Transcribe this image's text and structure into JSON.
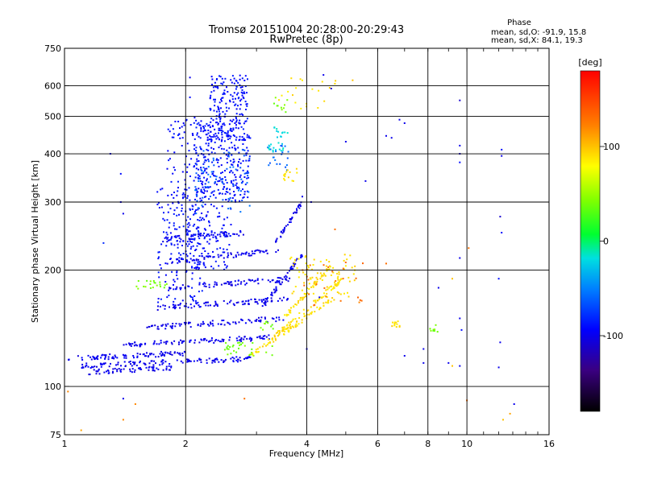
{
  "chart_data": {
    "type": "scatter",
    "title": "Tromsø 20151004 20:28:00-20:29:43",
    "subtitle": "RwPretec (8p)",
    "xlabel": "Frequency [MHz]",
    "ylabel": "Stationary phase Virtual Height [km]",
    "x_scale": "log",
    "y_scale": "log",
    "xlim": [
      1,
      16
    ],
    "ylim": [
      75,
      750
    ],
    "x_ticks": [
      1,
      2,
      4,
      6,
      8,
      10,
      16
    ],
    "x_tick_labels": [
      "1",
      "2",
      "4",
      "6",
      "8",
      "10",
      "16"
    ],
    "y_ticks": [
      75,
      100,
      200,
      300,
      400,
      500,
      600,
      750
    ],
    "y_tick_labels": [
      "75",
      "100",
      "200",
      "300",
      "400",
      "500",
      "600",
      "750"
    ],
    "grid": true,
    "stats": {
      "heading": "Phase",
      "line_o": "mean, sd,O: -91.9, 15.8",
      "line_x": "mean, sd,X:  84.1, 19.3"
    },
    "colorbar": {
      "label": "[deg]",
      "range": [
        -180,
        180
      ],
      "ticks": [
        100,
        0,
        -100
      ],
      "tick_labels": [
        "100",
        "0",
        "-100"
      ]
    },
    "series": [
      {
        "phase": -100,
        "traces": [
          {
            "f0": 1.02,
            "f1": 2.0,
            "h0": 118,
            "h1": 122,
            "n": 90
          },
          {
            "f0": 1.1,
            "f1": 2.9,
            "h0": 113,
            "h1": 118,
            "n": 120
          },
          {
            "f0": 1.15,
            "f1": 1.9,
            "h0": 109,
            "h1": 112,
            "n": 60
          },
          {
            "f0": 1.4,
            "f1": 3.3,
            "h0": 128,
            "h1": 134,
            "n": 100
          },
          {
            "f0": 1.6,
            "f1": 3.5,
            "h0": 142,
            "h1": 150,
            "n": 90
          },
          {
            "f0": 1.7,
            "f1": 3.6,
            "h0": 160,
            "h1": 168,
            "n": 90
          },
          {
            "f0": 1.8,
            "f1": 3.7,
            "h0": 180,
            "h1": 190,
            "n": 80
          },
          {
            "f0": 1.8,
            "f1": 3.4,
            "h0": 210,
            "h1": 225,
            "n": 70
          },
          {
            "f0": 1.75,
            "f1": 2.8,
            "h0": 240,
            "h1": 250,
            "n": 60
          },
          {
            "f0": 3.1,
            "f1": 3.9,
            "h0": 160,
            "h1": 220,
            "n": 50
          },
          {
            "f0": 3.3,
            "f1": 3.9,
            "h0": 230,
            "h1": 300,
            "n": 40
          }
        ]
      },
      {
        "phase": -90,
        "clusters": [
          {
            "fmin": 1.8,
            "fmax": 2.3,
            "hmin": 200,
            "hmax": 500,
            "n": 180
          },
          {
            "fmin": 2.1,
            "fmax": 2.9,
            "hmin": 300,
            "hmax": 480,
            "n": 260
          },
          {
            "fmin": 2.3,
            "fmax": 2.85,
            "hmin": 430,
            "hmax": 640,
            "n": 200
          },
          {
            "fmin": 1.7,
            "fmax": 2.2,
            "hmin": 160,
            "hmax": 330,
            "n": 120
          },
          {
            "fmin": 2.0,
            "fmax": 2.6,
            "hmin": 200,
            "hmax": 300,
            "n": 100
          }
        ]
      },
      {
        "phase": -60,
        "clusters": [
          {
            "fmin": 2.1,
            "fmax": 2.9,
            "hmin": 280,
            "hmax": 420,
            "n": 70
          },
          {
            "fmin": 3.2,
            "fmax": 3.6,
            "hmin": 360,
            "hmax": 420,
            "n": 20
          }
        ]
      },
      {
        "phase": -20,
        "clusters": [
          {
            "fmin": 3.2,
            "fmax": 3.5,
            "hmin": 400,
            "hmax": 430,
            "n": 15
          },
          {
            "fmin": 3.3,
            "fmax": 3.6,
            "hmin": 440,
            "hmax": 470,
            "n": 12
          }
        ]
      },
      {
        "phase": 40,
        "clusters": [
          {
            "fmin": 2.5,
            "fmax": 3.3,
            "hmin": 120,
            "hmax": 130,
            "n": 30
          },
          {
            "fmin": 1.5,
            "fmax": 1.8,
            "hmin": 178,
            "hmax": 188,
            "n": 20
          },
          {
            "fmin": 3.0,
            "fmax": 3.3,
            "hmin": 140,
            "hmax": 150,
            "n": 10
          },
          {
            "fmin": 8.1,
            "fmax": 8.6,
            "hmin": 138,
            "hmax": 145,
            "n": 8
          },
          {
            "fmin": 3.3,
            "fmax": 3.6,
            "hmin": 510,
            "hmax": 560,
            "n": 10
          }
        ]
      },
      {
        "phase": 90,
        "traces": [
          {
            "f0": 2.9,
            "f1": 4.7,
            "h0": 120,
            "h1": 170,
            "n": 70
          },
          {
            "f0": 3.2,
            "f1": 4.9,
            "h0": 130,
            "h1": 190,
            "n": 70
          },
          {
            "f0": 3.5,
            "f1": 4.6,
            "h0": 150,
            "h1": 205,
            "n": 50
          }
        ],
        "clusters": [
          {
            "fmin": 3.6,
            "fmax": 5.3,
            "hmin": 170,
            "hmax": 220,
            "n": 80
          },
          {
            "fmin": 3.5,
            "fmax": 3.8,
            "hmin": 340,
            "hmax": 380,
            "n": 15
          },
          {
            "fmin": 6.5,
            "fmax": 7.0,
            "hmin": 142,
            "hmax": 148,
            "n": 12
          },
          {
            "fmin": 3.4,
            "fmax": 4.8,
            "hmin": 520,
            "hmax": 640,
            "n": 20
          }
        ]
      },
      {
        "phase": 130,
        "clusters": [
          {
            "fmin": 3.9,
            "fmax": 5.6,
            "hmin": 160,
            "hmax": 210,
            "n": 25
          }
        ]
      }
    ],
    "sparse_points": [
      {
        "x": 1.38,
        "y": 300,
        "phase": -100
      },
      {
        "x": 1.38,
        "y": 355,
        "phase": -90
      },
      {
        "x": 1.4,
        "y": 280,
        "phase": -100
      },
      {
        "x": 1.25,
        "y": 235,
        "phase": -80
      },
      {
        "x": 2.05,
        "y": 630,
        "phase": -100
      },
      {
        "x": 2.05,
        "y": 560,
        "phase": -90
      },
      {
        "x": 5.0,
        "y": 430,
        "phase": -100
      },
      {
        "x": 6.5,
        "y": 440,
        "phase": -100
      },
      {
        "x": 6.8,
        "y": 490,
        "phase": -100
      },
      {
        "x": 5.6,
        "y": 340,
        "phase": -100
      },
      {
        "x": 9.6,
        "y": 550,
        "phase": -110
      },
      {
        "x": 9.6,
        "y": 420,
        "phase": -100
      },
      {
        "x": 9.6,
        "y": 400,
        "phase": -110
      },
      {
        "x": 9.6,
        "y": 380,
        "phase": -90
      },
      {
        "x": 12.2,
        "y": 410,
        "phase": -90
      },
      {
        "x": 12.2,
        "y": 395,
        "phase": -100
      },
      {
        "x": 12.1,
        "y": 275,
        "phase": -110
      },
      {
        "x": 12.2,
        "y": 250,
        "phase": -90
      },
      {
        "x": 9.6,
        "y": 215,
        "phase": -100
      },
      {
        "x": 12.0,
        "y": 190,
        "phase": -90
      },
      {
        "x": 12.1,
        "y": 130,
        "phase": -100
      },
      {
        "x": 12.0,
        "y": 112,
        "phase": -100
      },
      {
        "x": 9.6,
        "y": 113,
        "phase": -100
      },
      {
        "x": 9.6,
        "y": 150,
        "phase": -100
      },
      {
        "x": 9.7,
        "y": 140,
        "phase": -90
      },
      {
        "x": 10.1,
        "y": 228,
        "phase": 130
      },
      {
        "x": 10.0,
        "y": 92,
        "phase": 130
      },
      {
        "x": 12.3,
        "y": 82,
        "phase": 100
      },
      {
        "x": 12.8,
        "y": 85,
        "phase": 110
      },
      {
        "x": 13.1,
        "y": 90,
        "phase": -100
      },
      {
        "x": 1.4,
        "y": 93,
        "phase": -100
      },
      {
        "x": 1.4,
        "y": 82,
        "phase": 120
      },
      {
        "x": 1.5,
        "y": 90,
        "phase": 120
      },
      {
        "x": 1.02,
        "y": 97,
        "phase": 120
      },
      {
        "x": 1.1,
        "y": 77,
        "phase": 110
      },
      {
        "x": 2.8,
        "y": 93,
        "phase": 130
      },
      {
        "x": 4.7,
        "y": 255,
        "phase": 130
      },
      {
        "x": 6.3,
        "y": 208,
        "phase": 130
      },
      {
        "x": 5.4,
        "y": 165,
        "phase": 120
      },
      {
        "x": 4.3,
        "y": 170,
        "phase": -100
      },
      {
        "x": 4.0,
        "y": 125,
        "phase": -100
      },
      {
        "x": 4.4,
        "y": 640,
        "phase": -100
      },
      {
        "x": 4.6,
        "y": 590,
        "phase": -110
      },
      {
        "x": 5.2,
        "y": 620,
        "phase": 100
      },
      {
        "x": 7.0,
        "y": 480,
        "phase": -100
      },
      {
        "x": 7.8,
        "y": 115,
        "phase": -100
      },
      {
        "x": 7.8,
        "y": 125,
        "phase": -100
      },
      {
        "x": 8.5,
        "y": 180,
        "phase": -100
      },
      {
        "x": 9.2,
        "y": 190,
        "phase": 100
      },
      {
        "x": 9.0,
        "y": 115,
        "phase": -100
      },
      {
        "x": 9.2,
        "y": 113,
        "phase": 100
      },
      {
        "x": 7.0,
        "y": 120,
        "phase": -100
      },
      {
        "x": 6.3,
        "y": 445,
        "phase": -100
      },
      {
        "x": 4.1,
        "y": 300,
        "phase": -100
      },
      {
        "x": 3.9,
        "y": 310,
        "phase": -100
      },
      {
        "x": 1.3,
        "y": 400,
        "phase": -100
      }
    ]
  }
}
